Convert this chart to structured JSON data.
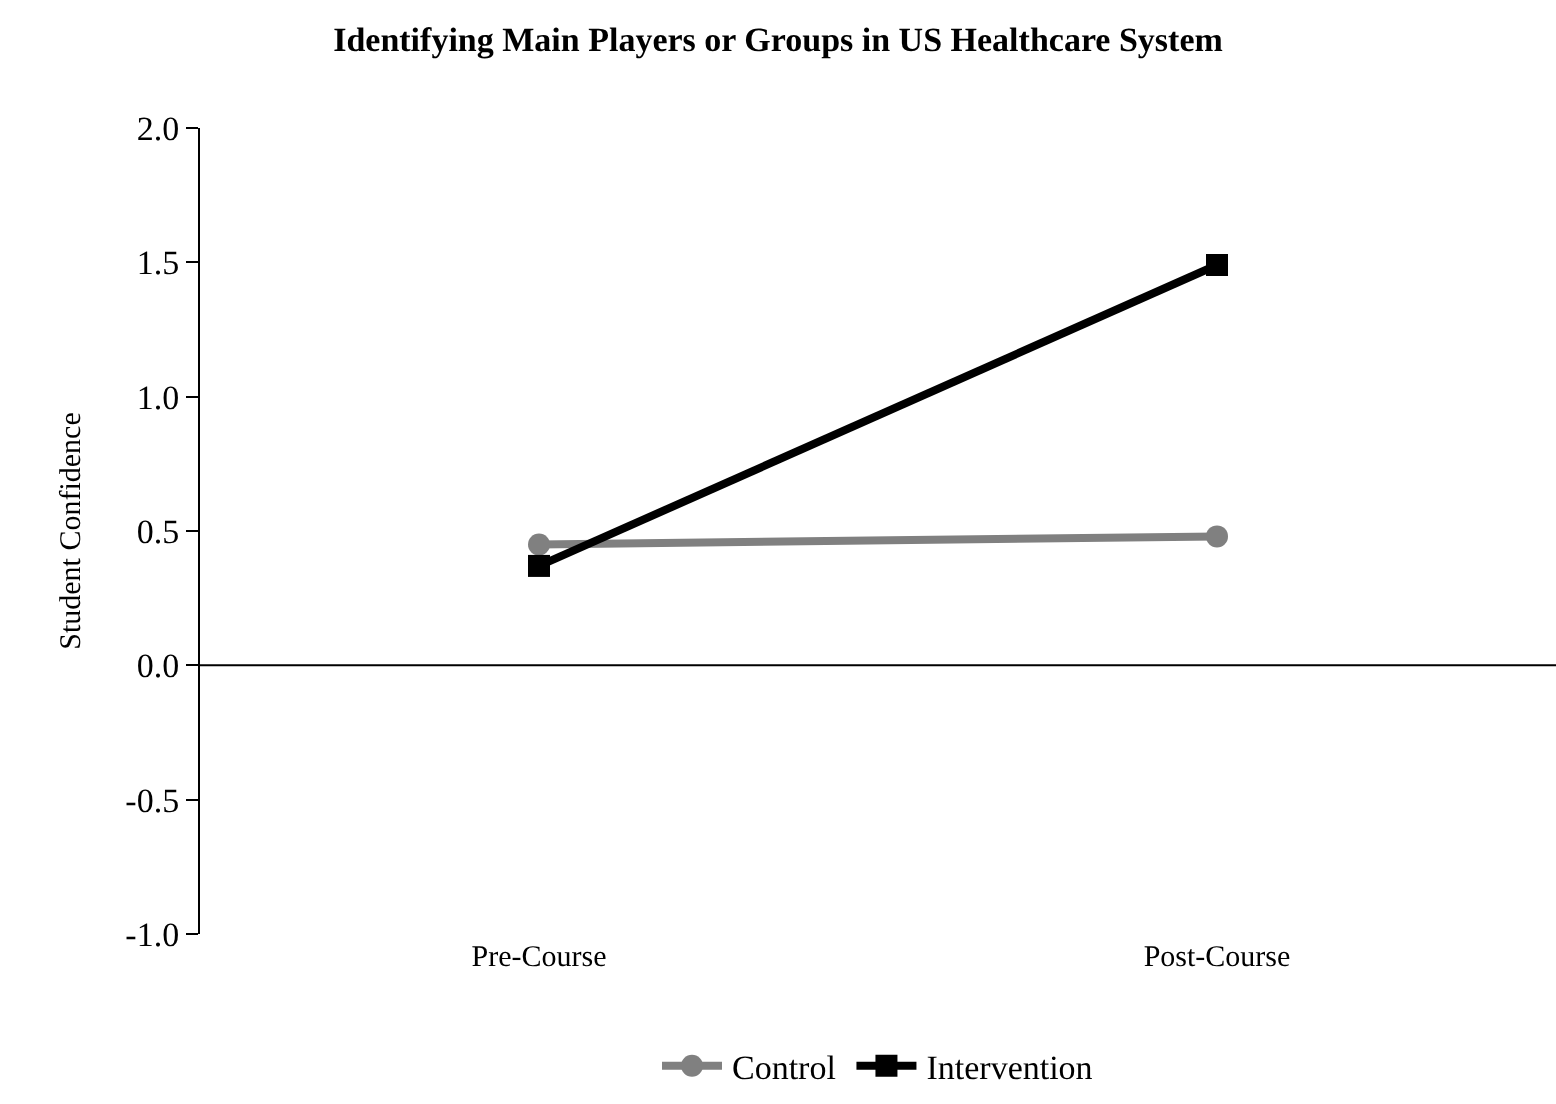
{
  "chart_data": {
    "type": "line",
    "title": "Identifying Main Players or Groups in US Healthcare System",
    "ylabel": "Student Confidence",
    "categories": [
      "Pre-Course",
      "Post-Course"
    ],
    "series": [
      {
        "name": "Control",
        "color": "#808080",
        "values": [
          0.45,
          0.48
        ],
        "marker": "circle"
      },
      {
        "name": "Intervention",
        "color": "#000000",
        "values": [
          0.37,
          1.49
        ],
        "marker": "square"
      }
    ],
    "ylim": [
      -1.0,
      2.0
    ],
    "yticks": [
      {
        "value": -1,
        "label": "-1.0"
      },
      {
        "value": -0.5,
        "label": "-0.5"
      },
      {
        "value": 0,
        "label": "0.0"
      },
      {
        "value": 0.5,
        "label": "0.5"
      },
      {
        "value": 1,
        "label": "1.0"
      },
      {
        "value": 1.5,
        "label": "1.5"
      },
      {
        "value": 2,
        "label": "2.0"
      }
    ],
    "ref_lines": [
      {
        "axis": "y",
        "value": 0,
        "color": "#000000",
        "line_style": "solid"
      }
    ],
    "legend": "bottom",
    "line_style": "solid"
  }
}
